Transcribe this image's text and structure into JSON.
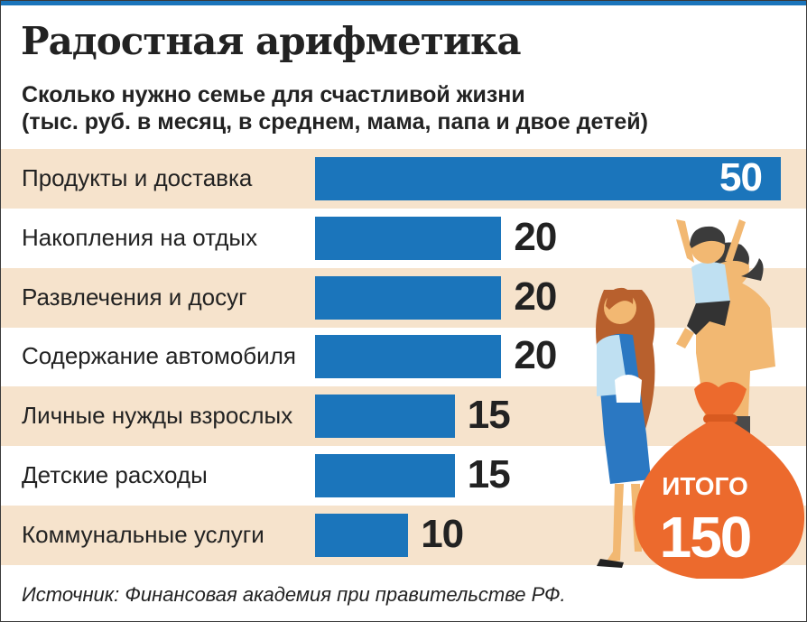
{
  "header": {
    "title": "Радостная арифметика",
    "subtitle_line1": "Сколько нужно семье для счастливой жизни",
    "subtitle_line2": "(тыс. руб. в месяц, в среднем, мама, папа и двое детей)"
  },
  "chart_data": {
    "type": "bar",
    "orientation": "horizontal",
    "title": "Радостная арифметика",
    "subtitle": "Сколько нужно семье для счастливой жизни (тыс. руб. в месяц, в среднем, мама, папа и двое детей)",
    "categories": [
      "Продукты и доставка",
      "Накопления на отдых",
      "Развлечения и досуг",
      "Содержание автомобиля",
      "Личные нужды взрослых",
      "Детские расходы",
      "Коммунальные услуги"
    ],
    "values": [
      50,
      20,
      20,
      20,
      15,
      15,
      10
    ],
    "value_labels": [
      "50",
      "20",
      "20",
      "20",
      "15",
      "15",
      "10"
    ],
    "xlim": [
      0,
      50
    ],
    "grid": false,
    "bar_color": "#1b75bb",
    "row_band_color": "#f6e3cc",
    "total": {
      "label": "ИТОГО",
      "value": "150"
    }
  },
  "illustration": {
    "icon": "family-with-money-bag-icon",
    "bag_color": "#ec6a2d"
  },
  "footer": {
    "source": "Источник: Финансовая академия при правительстве РФ."
  },
  "colors": {
    "accent": "#1b75bb",
    "band": "#f6e3cc",
    "orange": "#ec6a2d",
    "text": "#222222"
  }
}
